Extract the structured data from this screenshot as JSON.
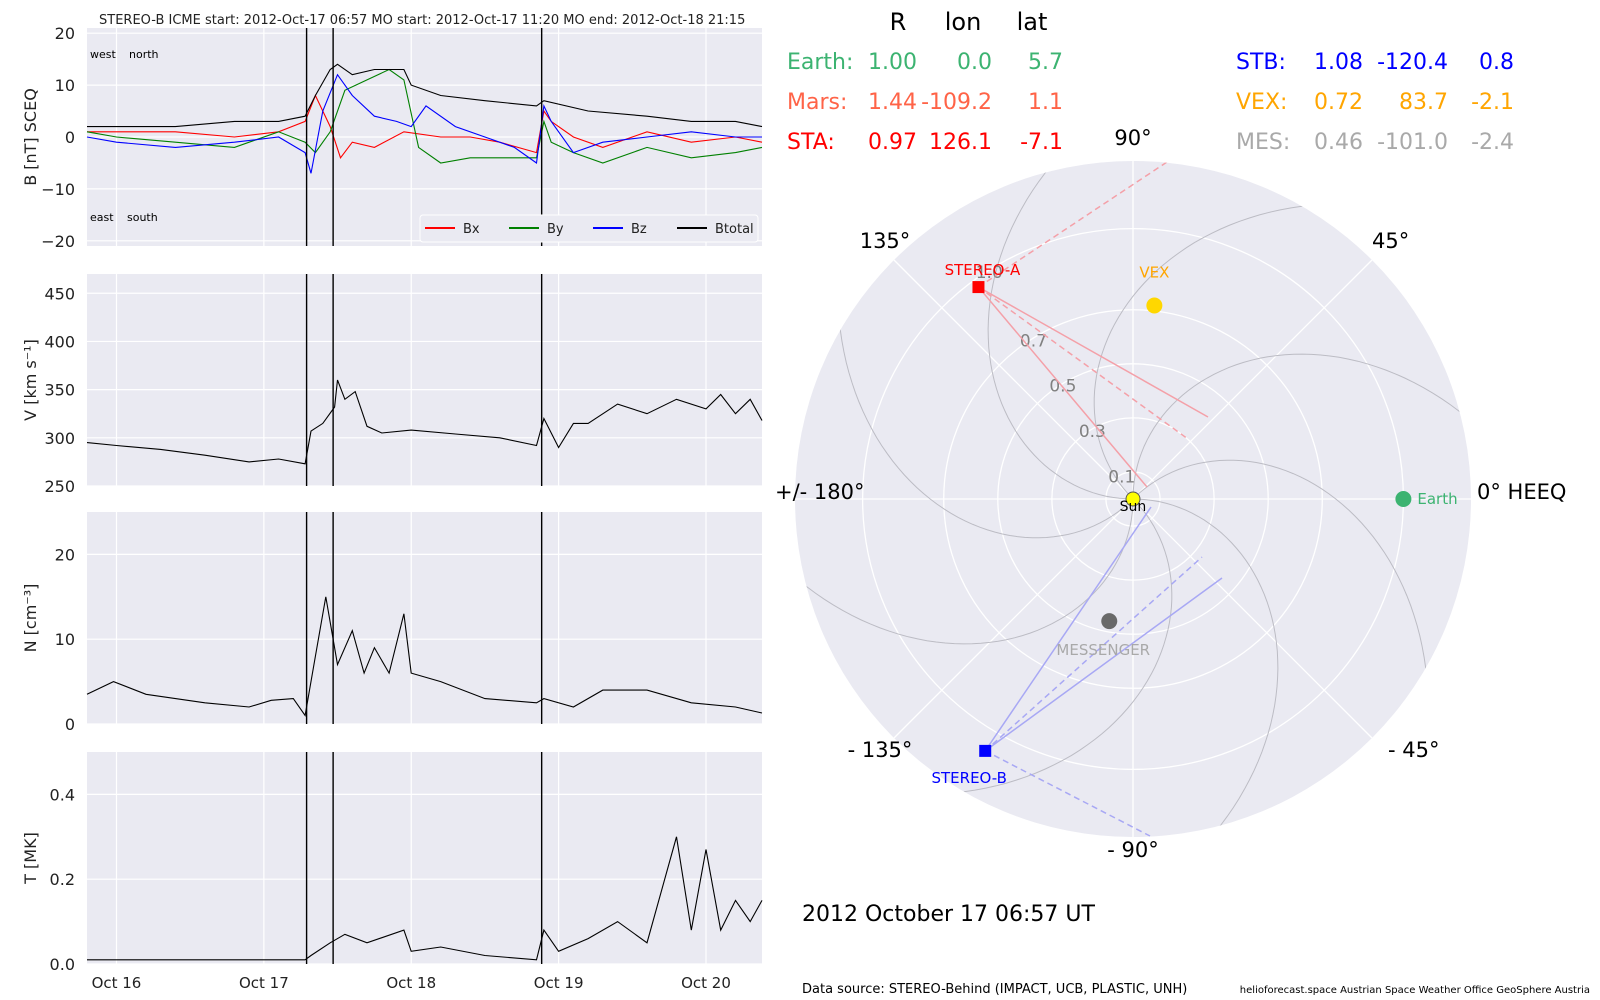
{
  "header": {
    "title": "STEREO-B    ICME start: 2012-Oct-17 06:57    MO start: 2012-Oct-17 11:20    MO end: 2012-Oct-18 21:15"
  },
  "chart_data": [
    {
      "type": "line",
      "id": "magnetic-field",
      "ylabel": "B [nT] SCEQ",
      "ylim": [
        -21,
        21
      ],
      "yticks": [
        "20",
        "10",
        "0",
        "−10",
        "−20"
      ],
      "ytick_values": [
        20,
        10,
        0,
        -10,
        -20
      ],
      "x_range_days": [
        15.8,
        20.38
      ],
      "annotations": [
        "west",
        "north",
        "east",
        "south"
      ],
      "legend": {
        "position": "lower right",
        "entries": [
          "Bx",
          "By",
          "Bz",
          "Btotal"
        ]
      },
      "series": [
        {
          "name": "Bx",
          "color": "#ff0000",
          "x": [
            15.8,
            16.0,
            16.4,
            16.8,
            17.1,
            17.28,
            17.35,
            17.45,
            17.52,
            17.6,
            17.75,
            17.95,
            18.2,
            18.4,
            18.6,
            18.85,
            18.9,
            18.95,
            19.1,
            19.3,
            19.6,
            19.9,
            20.2,
            20.38
          ],
          "y": [
            1,
            1,
            1,
            0,
            1,
            3,
            8,
            2,
            -4,
            -1,
            -2,
            1,
            0,
            0,
            -1,
            -3,
            5,
            3,
            0,
            -2,
            1,
            -1,
            0,
            -1
          ]
        },
        {
          "name": "By",
          "color": "#008000",
          "x": [
            15.8,
            16.0,
            16.4,
            16.8,
            17.1,
            17.28,
            17.35,
            17.45,
            17.55,
            17.7,
            17.85,
            17.95,
            18.05,
            18.2,
            18.4,
            18.6,
            18.85,
            18.9,
            18.95,
            19.1,
            19.3,
            19.6,
            19.9,
            20.2,
            20.38
          ],
          "y": [
            1,
            0,
            -1,
            -2,
            1,
            -1,
            -3,
            1,
            9,
            11,
            13,
            11,
            -2,
            -5,
            -4,
            -4,
            -4,
            3,
            -1,
            -3,
            -5,
            -2,
            -4,
            -3,
            -2
          ]
        },
        {
          "name": "Bz",
          "color": "#0000ff",
          "x": [
            15.8,
            16.0,
            16.4,
            16.8,
            17.1,
            17.28,
            17.32,
            17.4,
            17.5,
            17.6,
            17.75,
            17.9,
            18.0,
            18.1,
            18.3,
            18.5,
            18.7,
            18.85,
            18.9,
            18.95,
            19.1,
            19.3,
            19.6,
            19.9,
            20.2,
            20.38
          ],
          "y": [
            0,
            -1,
            -2,
            -1,
            0,
            -3,
            -7,
            5,
            12,
            8,
            4,
            3,
            2,
            6,
            2,
            0,
            -2,
            -5,
            6,
            3,
            -3,
            -1,
            0,
            1,
            0,
            0
          ]
        },
        {
          "name": "Btotal",
          "color": "#000000",
          "x": [
            15.8,
            16.0,
            16.4,
            16.8,
            17.1,
            17.28,
            17.35,
            17.45,
            17.5,
            17.6,
            17.75,
            17.95,
            18.0,
            18.2,
            18.5,
            18.85,
            18.9,
            19.2,
            19.6,
            19.9,
            20.2,
            20.38
          ],
          "y": [
            2,
            2,
            2,
            3,
            3,
            4,
            8,
            13,
            14,
            12,
            13,
            13,
            10,
            8,
            7,
            6,
            7,
            5,
            4,
            3,
            3,
            2
          ]
        }
      ]
    },
    {
      "type": "line",
      "id": "speed",
      "ylabel": "V [km s⁻¹]",
      "ylim": [
        250,
        470
      ],
      "yticks": [
        "450",
        "400",
        "350",
        "300",
        "250"
      ],
      "ytick_values": [
        450,
        400,
        350,
        300,
        250
      ],
      "x_range_days": [
        15.8,
        20.38
      ],
      "series": [
        {
          "name": "V",
          "color": "#000000",
          "x": [
            15.8,
            16.0,
            16.3,
            16.6,
            16.9,
            17.1,
            17.28,
            17.32,
            17.4,
            17.48,
            17.5,
            17.55,
            17.62,
            17.7,
            17.8,
            18.0,
            18.3,
            18.6,
            18.85,
            18.9,
            19.0,
            19.1,
            19.2,
            19.4,
            19.6,
            19.8,
            20.0,
            20.1,
            20.2,
            20.3,
            20.38
          ],
          "y": [
            295,
            292,
            288,
            282,
            275,
            278,
            273,
            307,
            315,
            332,
            360,
            340,
            348,
            312,
            305,
            308,
            304,
            300,
            292,
            320,
            290,
            315,
            315,
            335,
            325,
            340,
            330,
            345,
            325,
            340,
            318
          ]
        }
      ]
    },
    {
      "type": "line",
      "id": "density",
      "ylabel": "N [cm⁻³]",
      "ylim": [
        0,
        25
      ],
      "yticks": [
        "20",
        "10",
        "0"
      ],
      "ytick_values": [
        20,
        10,
        0
      ],
      "x_range_days": [
        15.8,
        20.38
      ],
      "series": [
        {
          "name": "N",
          "color": "#000000",
          "x": [
            15.8,
            15.98,
            16.2,
            16.6,
            16.9,
            17.05,
            17.2,
            17.28,
            17.35,
            17.42,
            17.5,
            17.6,
            17.68,
            17.75,
            17.85,
            17.95,
            18.0,
            18.2,
            18.5,
            18.85,
            18.9,
            19.1,
            19.3,
            19.6,
            19.9,
            20.2,
            20.38
          ],
          "y": [
            3.5,
            5,
            3.5,
            2.5,
            2,
            2.8,
            3,
            1,
            8,
            15,
            7,
            11,
            6,
            9,
            6,
            13,
            6,
            5,
            3,
            2.5,
            3,
            2,
            4,
            4,
            2.5,
            2,
            1.3
          ]
        }
      ]
    },
    {
      "type": "line",
      "id": "temperature",
      "ylabel": "T [MK]",
      "ylim": [
        0,
        0.5
      ],
      "yticks": [
        "0.4",
        "0.2",
        "0.0"
      ],
      "ytick_values": [
        0.4,
        0.2,
        0.0
      ],
      "x_range_days": [
        15.8,
        20.38
      ],
      "xticks": [
        "Oct 16",
        "Oct 17",
        "Oct 18",
        "Oct 19",
        "Oct 20"
      ],
      "xtick_values": [
        16,
        17,
        18,
        19,
        20
      ],
      "series": [
        {
          "name": "T",
          "color": "#000000",
          "x": [
            15.8,
            16.2,
            16.6,
            17.0,
            17.28,
            17.32,
            17.45,
            17.55,
            17.7,
            17.95,
            18.0,
            18.2,
            18.5,
            18.85,
            18.9,
            19.0,
            19.2,
            19.4,
            19.6,
            19.8,
            19.9,
            20.0,
            20.1,
            20.2,
            20.3,
            20.38
          ],
          "y": [
            0.01,
            0.01,
            0.01,
            0.01,
            0.01,
            0.02,
            0.05,
            0.07,
            0.05,
            0.08,
            0.03,
            0.04,
            0.02,
            0.01,
            0.08,
            0.03,
            0.06,
            0.1,
            0.05,
            0.3,
            0.08,
            0.27,
            0.08,
            0.15,
            0.1,
            0.15
          ]
        }
      ]
    },
    {
      "type": "scatter",
      "id": "polar-orbit-plot",
      "polar_angle_labels": [
        {
          "deg": 0,
          "label": "0° HEEQ"
        },
        {
          "deg": 45,
          "label": "45°"
        },
        {
          "deg": 90,
          "label": "90°"
        },
        {
          "deg": 135,
          "label": "135°"
        },
        {
          "deg": 180,
          "label": "+/- 180°"
        },
        {
          "deg": -135,
          "label": "- 135°"
        },
        {
          "deg": -90,
          "label": "- 90°"
        },
        {
          "deg": -45,
          "label": "- 45°"
        }
      ],
      "radial_labels": [
        "0.1",
        "0.3",
        "0.5",
        "0.7",
        "1.0"
      ],
      "radial_values": [
        0.1,
        0.3,
        0.5,
        0.7,
        1.0
      ],
      "rmax": 1.25,
      "bodies": [
        {
          "name": "Sun",
          "r": 0.0,
          "lon": 0.0,
          "color": "#ffff00",
          "marker": "circle"
        },
        {
          "name": "Earth",
          "r": 1.0,
          "lon": 0.0,
          "color": "#3cb371",
          "marker": "circle"
        },
        {
          "name": "VEX",
          "r": 0.72,
          "lon": 83.7,
          "color": "#ffd700",
          "marker": "circle"
        },
        {
          "name": "MESSENGER",
          "r": 0.46,
          "lon": -101.0,
          "color": "#696969",
          "marker": "circle"
        },
        {
          "name": "STEREO-A",
          "r": 0.97,
          "lon": 126.1,
          "color": "#ff0000",
          "marker": "square"
        },
        {
          "name": "STEREO-B",
          "r": 1.08,
          "lon": -120.4,
          "color": "#0000ff",
          "marker": "square"
        }
      ],
      "spiral_count": 8
    }
  ],
  "position_table": {
    "header": {
      "r": "R",
      "lon": "lon",
      "lat": "lat"
    },
    "left_rows": [
      {
        "name": "Earth:",
        "r": "1.00",
        "lon": "0.0",
        "lat": "5.7",
        "color": "#3cb371"
      },
      {
        "name": "Mars:",
        "r": "1.44",
        "lon": "-109.2",
        "lat": "1.1",
        "color": "#ff6347"
      },
      {
        "name": "STA:",
        "r": "0.97",
        "lon": "126.1",
        "lat": "-7.1",
        "color": "#ff0000"
      }
    ],
    "right_rows": [
      {
        "name": "STB:",
        "r": "1.08",
        "lon": "-120.4",
        "lat": "0.8",
        "color": "#0000ff"
      },
      {
        "name": "VEX:",
        "r": "0.72",
        "lon": "83.7",
        "lat": "-2.1",
        "color": "#ffa500"
      },
      {
        "name": "MES:",
        "r": "0.46",
        "lon": "-101.0",
        "lat": "-2.4",
        "color": "#a9a9a9"
      }
    ]
  },
  "date_label": "2012 October 17  06:57 UT",
  "footer": {
    "source": "Data source: STEREO-Behind (IMPACT, UCB, PLASTIC, UNH)",
    "credits": "helioforecast.space   Austrian Space Weather Office   GeoSphere Austria"
  },
  "event_lines": {
    "x": [
      17.29,
      17.47,
      18.885
    ],
    "labels": [
      "ICME start",
      "MO start",
      "MO end"
    ]
  }
}
